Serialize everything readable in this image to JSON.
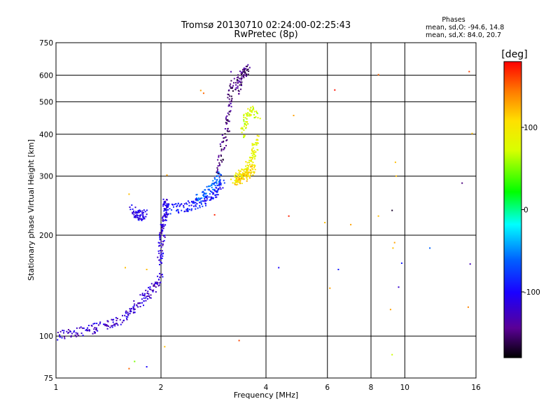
{
  "header": {
    "title_line1": "Tromsø 20130710 02:24:00-02:25:43",
    "title_line2": "RwPretec (8p)"
  },
  "stats": {
    "label": "Phases",
    "line_o": "mean, sd,O:  -94.6, 14.8",
    "line_x": "mean, sd,X:  84.0, 20.7"
  },
  "colorbar": {
    "unit": "[deg]",
    "ticks": [
      "100",
      "0",
      "-100"
    ],
    "tick_values": [
      100,
      0,
      -100
    ],
    "range": [
      -180,
      180
    ],
    "colormap": "rainbow (black-purple-blue-cyan-green-yellow-orange-red)"
  },
  "chart_data": {
    "type": "scatter",
    "xlabel": "Frequency [MHz]",
    "ylabel": "Stationary phase Virtual Height [km]",
    "x_scale": "log",
    "y_scale": "log",
    "xlim": [
      1,
      16
    ],
    "ylim": [
      75,
      750
    ],
    "x_ticks": [
      1,
      2,
      4,
      6,
      8,
      10,
      16
    ],
    "x_tick_labels": [
      "1",
      "2",
      "4",
      "6",
      "8",
      "10",
      "16"
    ],
    "y_ticks": [
      75,
      100,
      200,
      300,
      400,
      500,
      600,
      750
    ],
    "y_tick_labels": [
      "75",
      "100",
      "200",
      "300",
      "400",
      "500",
      "600",
      "750"
    ],
    "grid": true,
    "color_by": "phase [deg]",
    "series": [
      {
        "segments": [
          {
            "f": [
              1.0,
              1.12,
              1.25,
              1.38,
              1.5,
              1.62,
              1.72,
              1.82,
              1.92,
              2.0
            ],
            "h": [
              100,
              102,
              104,
              108,
              110,
              118,
              125,
              132,
              140,
              150
            ],
            "phase": -120
          },
          {
            "f": [
              1.98,
              2.0,
              2.02,
              2.04,
              2.06,
              2.07
            ],
            "h": [
              165,
              185,
              205,
              225,
              240,
              250
            ],
            "phase": -115
          },
          {
            "f": [
              2.05,
              2.2,
              2.35,
              2.5,
              2.65,
              2.8,
              2.92,
              3.0
            ],
            "h": [
              238,
              240,
              243,
              247,
              253,
              262,
              272,
              285
            ],
            "phase": -95
          },
          {
            "f": [
              2.55,
              2.7,
              2.85,
              2.95
            ],
            "h": [
              258,
              270,
              285,
              300
            ],
            "phase": -60
          },
          {
            "f": [
              1.65,
              1.7,
              1.75,
              1.8
            ],
            "h": [
              240,
              232,
              228,
              230
            ],
            "phase": -110
          },
          {
            "f": [
              2.9,
              3.0,
              3.1,
              3.15,
              3.2
            ],
            "h": [
              300,
              360,
              420,
              500,
              600
            ],
            "phase": -150
          },
          {
            "f": [
              3.3,
              3.35,
              3.45,
              3.55
            ],
            "h": [
              530,
              580,
              610,
              630
            ],
            "phase": -150
          },
          {
            "f": [
              3.2,
              3.35,
              3.5,
              3.6,
              3.7,
              3.8
            ],
            "h": [
              290,
              300,
              310,
              330,
              360,
              400
            ],
            "phase": 90
          },
          {
            "f": [
              3.4,
              3.5,
              3.6,
              3.8
            ],
            "h": [
              400,
              440,
              470,
              460
            ],
            "phase": 75
          },
          {
            "f": [
              3.3,
              3.4,
              3.5,
              3.6,
              3.7
            ],
            "h": [
              290,
              295,
              300,
              310,
              320
            ],
            "phase": 110
          }
        ],
        "points": [
          {
            "f": 1.62,
            "h": 265,
            "phase": 120
          },
          {
            "f": 1.58,
            "h": 160,
            "phase": 120
          },
          {
            "f": 1.62,
            "h": 80,
            "phase": 150
          },
          {
            "f": 1.68,
            "h": 84,
            "phase": 50
          },
          {
            "f": 1.82,
            "h": 81,
            "phase": -100
          },
          {
            "f": 1.82,
            "h": 158,
            "phase": 120
          },
          {
            "f": 2.05,
            "h": 93,
            "phase": 120
          },
          {
            "f": 2.08,
            "h": 302,
            "phase": 130
          },
          {
            "f": 2.6,
            "h": 540,
            "phase": 130
          },
          {
            "f": 2.65,
            "h": 530,
            "phase": 150
          },
          {
            "f": 2.85,
            "h": 230,
            "phase": 170
          },
          {
            "f": 3.35,
            "h": 97,
            "phase": 160
          },
          {
            "f": 4.35,
            "h": 160,
            "phase": -100
          },
          {
            "f": 4.65,
            "h": 228,
            "phase": 170
          },
          {
            "f": 4.8,
            "h": 455,
            "phase": 130
          },
          {
            "f": 5.9,
            "h": 218,
            "phase": 120
          },
          {
            "f": 6.1,
            "h": 139,
            "phase": 130
          },
          {
            "f": 6.3,
            "h": 542,
            "phase": 175
          },
          {
            "f": 6.45,
            "h": 158,
            "phase": -90
          },
          {
            "f": 7.0,
            "h": 215,
            "phase": 130
          },
          {
            "f": 8.4,
            "h": 602,
            "phase": 150
          },
          {
            "f": 8.4,
            "h": 228,
            "phase": 120
          },
          {
            "f": 9.1,
            "h": 120,
            "phase": 130
          },
          {
            "f": 9.2,
            "h": 88,
            "phase": 70
          },
          {
            "f": 9.2,
            "h": 237,
            "phase": -170
          },
          {
            "f": 9.25,
            "h": 183,
            "phase": 120
          },
          {
            "f": 9.35,
            "h": 190,
            "phase": 130
          },
          {
            "f": 9.4,
            "h": 330,
            "phase": 120
          },
          {
            "f": 9.45,
            "h": 300,
            "phase": 120
          },
          {
            "f": 9.6,
            "h": 140,
            "phase": -120
          },
          {
            "f": 9.8,
            "h": 165,
            "phase": -90
          },
          {
            "f": 11.8,
            "h": 183,
            "phase": -60
          },
          {
            "f": 14.6,
            "h": 286,
            "phase": -150
          },
          {
            "f": 15.2,
            "h": 122,
            "phase": 140
          },
          {
            "f": 15.4,
            "h": 164,
            "phase": -130
          },
          {
            "f": 15.3,
            "h": 615,
            "phase": 160
          },
          {
            "f": 15.6,
            "h": 402,
            "phase": 120
          }
        ]
      }
    ]
  }
}
